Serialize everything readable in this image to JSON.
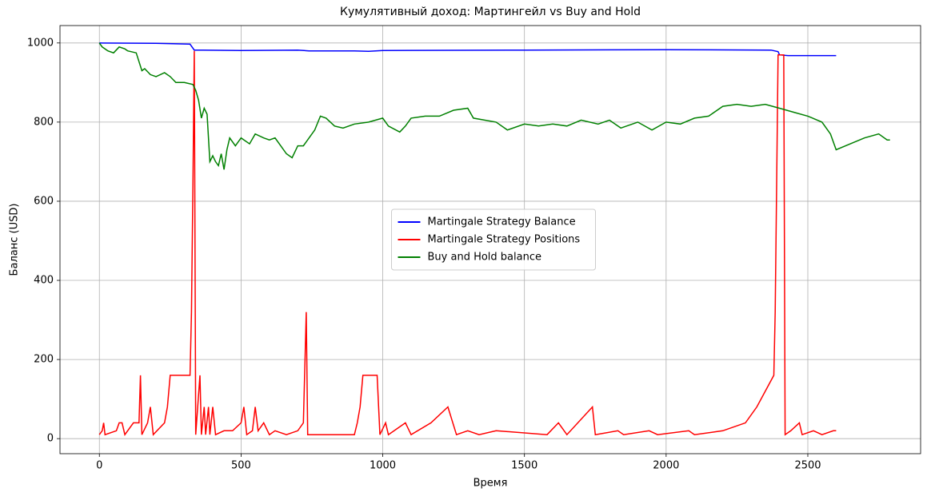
{
  "chart_data": {
    "type": "line",
    "title": "Кумулятивный доход: Мартингейл vs Buy and Hold",
    "x_label": "Время",
    "y_label": "Баланс (USD)",
    "xlim": [
      -139,
      2898
    ],
    "ylim": [
      -38,
      1044
    ],
    "xticks": [
      0,
      500,
      1000,
      1500,
      2000,
      2500
    ],
    "yticks": [
      0,
      200,
      400,
      600,
      800,
      1000
    ],
    "grid": true,
    "legend": "center",
    "series": [
      {
        "name": "Martingale Strategy Balance",
        "color": "#0000ff",
        "x": [
          0,
          200,
          320,
          335,
          500,
          700,
          740,
          900,
          950,
          1000,
          1500,
          2000,
          2370,
          2395,
          2400,
          2430,
          2600
        ],
        "values": [
          1000,
          999,
          997,
          982,
          981,
          982,
          980,
          980,
          979,
          981,
          982,
          983,
          982,
          978,
          970,
          968,
          968
        ]
      },
      {
        "name": "Martingale Strategy Positions",
        "color": "#ff0000",
        "x": [
          0,
          10,
          15,
          20,
          60,
          70,
          80,
          90,
          120,
          140,
          145,
          150,
          170,
          180,
          190,
          230,
          240,
          250,
          320,
          325,
          330,
          335,
          340,
          355,
          360,
          370,
          375,
          385,
          390,
          400,
          410,
          440,
          470,
          500,
          510,
          520,
          540,
          550,
          560,
          580,
          600,
          620,
          660,
          700,
          720,
          730,
          735,
          900,
          910,
          920,
          930,
          980,
          990,
          1010,
          1020,
          1080,
          1100,
          1170,
          1230,
          1260,
          1300,
          1340,
          1400,
          1580,
          1620,
          1650,
          1740,
          1750,
          1830,
          1850,
          1940,
          1970,
          2080,
          2100,
          2200,
          2280,
          2320,
          2380,
          2385,
          2390,
          2395,
          2415,
          2420,
          2440,
          2470,
          2480,
          2520,
          2550,
          2590,
          2600
        ],
        "values": [
          10,
          20,
          40,
          10,
          20,
          40,
          40,
          10,
          40,
          40,
          160,
          10,
          40,
          80,
          10,
          40,
          80,
          160,
          160,
          320,
          640,
          980,
          10,
          160,
          10,
          80,
          10,
          80,
          10,
          80,
          10,
          20,
          20,
          40,
          80,
          10,
          20,
          80,
          20,
          40,
          10,
          20,
          10,
          20,
          40,
          320,
          10,
          10,
          40,
          80,
          160,
          160,
          10,
          40,
          10,
          40,
          10,
          40,
          80,
          10,
          20,
          10,
          20,
          10,
          40,
          10,
          80,
          10,
          20,
          10,
          20,
          10,
          20,
          10,
          20,
          40,
          80,
          160,
          320,
          640,
          970,
          970,
          10,
          20,
          40,
          10,
          20,
          10,
          20,
          20
        ]
      },
      {
        "name": "Buy and Hold balance",
        "color": "#008000",
        "x": [
          0,
          10,
          30,
          50,
          70,
          90,
          100,
          130,
          150,
          160,
          180,
          200,
          230,
          250,
          270,
          300,
          330,
          340,
          350,
          360,
          370,
          380,
          390,
          400,
          410,
          420,
          430,
          440,
          450,
          460,
          480,
          500,
          530,
          550,
          580,
          600,
          620,
          640,
          660,
          680,
          700,
          720,
          740,
          760,
          780,
          800,
          830,
          860,
          900,
          950,
          1000,
          1020,
          1060,
          1080,
          1100,
          1150,
          1200,
          1250,
          1300,
          1320,
          1400,
          1440,
          1500,
          1550,
          1600,
          1650,
          1700,
          1760,
          1800,
          1840,
          1900,
          1950,
          2000,
          2050,
          2100,
          2150,
          2200,
          2250,
          2300,
          2350,
          2400,
          2450,
          2500,
          2550,
          2580,
          2600,
          2650,
          2700,
          2750,
          2780,
          2790
        ],
        "values": [
          1000,
          990,
          980,
          975,
          990,
          985,
          980,
          975,
          930,
          935,
          920,
          915,
          925,
          915,
          900,
          900,
          895,
          880,
          855,
          810,
          835,
          820,
          700,
          715,
          700,
          690,
          720,
          680,
          730,
          760,
          740,
          760,
          745,
          770,
          760,
          755,
          760,
          740,
          720,
          710,
          740,
          740,
          760,
          780,
          815,
          810,
          790,
          785,
          795,
          800,
          810,
          790,
          775,
          790,
          810,
          815,
          815,
          830,
          835,
          810,
          800,
          780,
          795,
          790,
          795,
          790,
          805,
          795,
          805,
          785,
          800,
          780,
          800,
          795,
          810,
          815,
          840,
          845,
          840,
          845,
          835,
          825,
          815,
          800,
          770,
          730,
          745,
          760,
          770,
          755,
          755
        ]
      }
    ]
  }
}
